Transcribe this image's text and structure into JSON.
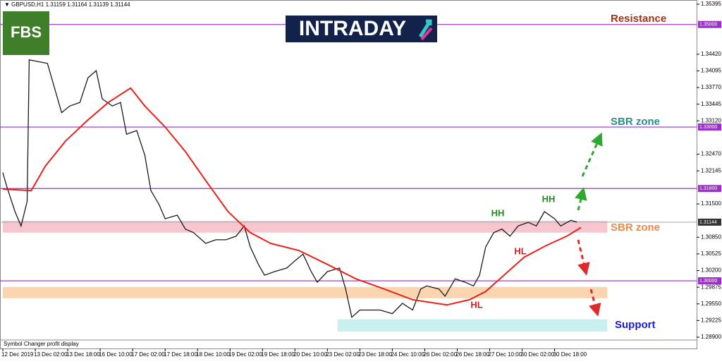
{
  "chart_data": {
    "type": "line",
    "title": "GBPUSD,H1",
    "quote": [
      1.31159,
      1.31164,
      1.31139,
      1.31144
    ],
    "footer": "Symbol Changer profit display",
    "logo": "FBS",
    "banner": "INTRADAY",
    "ylim": [
      1.289,
      1.35395
    ],
    "xlim": [
      0,
      342
    ],
    "yticks": [
      1.35395,
      {
        "value": 1.3442,
        "label": "1.34420"
      },
      1.34095,
      {
        "value": 1.3377,
        "label": "1.33770"
      },
      1.33445,
      {
        "value": 1.3312,
        "label": "1.33120"
      },
      {
        "value": 1.3247,
        "label": "1.32470"
      },
      1.32145,
      {
        "value": 1.315,
        "label": "1.31500"
      },
      {
        "value": 1.3085,
        "label": "1.30850"
      },
      1.30525,
      {
        "value": 1.302,
        "label": "1.30200"
      },
      1.29875,
      {
        "value": 1.2955,
        "label": "1.29550"
      },
      1.29225,
      {
        "value": 1.289,
        "label": "1.28900"
      }
    ],
    "xticks": [
      {
        "value": 0,
        "label": "12 Dec 2019"
      },
      {
        "value": 16,
        "label": "13 Dec 02:00"
      },
      {
        "value": 32,
        "label": "13 Dec 18:00"
      },
      {
        "value": 48,
        "label": "16 Dec 10:00"
      },
      {
        "value": 64,
        "label": "17 Dec 02:00"
      },
      {
        "value": 80,
        "label": "17 Dec 18:00"
      },
      {
        "value": 96,
        "label": "18 Dec 10:00"
      },
      {
        "value": 112,
        "label": "19 Dec 02:00"
      },
      {
        "value": 128,
        "label": "19 Dec 18:00"
      },
      {
        "value": 144,
        "label": "20 Dec 10:00"
      },
      {
        "value": 160,
        "label": "23 Dec 02:00"
      },
      {
        "value": 176,
        "label": "23 Dec 18:00"
      },
      {
        "value": 192,
        "label": "24 Dec 10:00"
      },
      {
        "value": 208,
        "label": "26 Dec 02:00"
      },
      {
        "value": 224,
        "label": "26 Dec 18:00"
      },
      {
        "value": 240,
        "label": "27 Dec 10:00"
      },
      {
        "value": 256,
        "label": "30 Dec 02:00"
      },
      {
        "value": 272,
        "label": "30 Dec 18:00"
      }
    ],
    "levels": [
      {
        "value": 1.35,
        "label": "1.35000",
        "color": "#9b30c8"
      },
      {
        "value": 1.33,
        "label": "1.33000",
        "color": "#9b30c8"
      },
      {
        "value": 1.318,
        "label": "1.31800",
        "color": "#9b30c8"
      },
      {
        "value": 1.31144,
        "label": "1.31144",
        "color": "#b0b0b0"
      },
      {
        "value": 1.3,
        "label": "1.30000",
        "color": "#9b30c8"
      }
    ],
    "zones": [
      {
        "low": 1.3094,
        "high": 1.3117,
        "start": 0,
        "end": 298,
        "color": "#f7c6cf"
      },
      {
        "low": 1.2966,
        "high": 1.2988,
        "start": 0,
        "end": 298,
        "color": "#fbd5b0"
      },
      {
        "low": 1.2901,
        "high": 1.2925,
        "start": 165,
        "end": 298,
        "color": "#c8f0ee"
      }
    ],
    "annotations": [
      {
        "text": "Resistance",
        "color": "#a0341c"
      },
      {
        "text": "SBR zone",
        "color": "#2e8b8b"
      },
      {
        "text": "SBR zone",
        "color": "#f0884a"
      },
      {
        "text": "Support",
        "color": "#1a1ad0"
      },
      {
        "text": "HH",
        "color": "#1f8a1f"
      },
      {
        "text": "HH",
        "color": "#1f8a1f"
      },
      {
        "text": "HL",
        "color": "#d41c1c"
      },
      {
        "text": "HL",
        "color": "#d41c1c"
      }
    ],
    "series": [
      {
        "color": "#1a1a1a",
        "x": [
          0,
          2,
          6,
          9,
          12,
          13,
          22,
          25,
          29,
          33,
          38,
          42,
          46,
          49,
          54,
          58,
          61,
          66,
          70,
          73,
          77,
          80,
          86,
          90,
          94,
          100,
          105,
          110,
          115,
          119,
          122,
          126,
          129,
          134,
          140,
          144,
          148,
          152,
          155,
          160,
          166,
          169,
          172,
          176,
          181,
          186,
          192,
          197,
          202,
          206,
          209,
          215,
          218,
          223,
          228,
          232,
          235,
          238,
          242,
          246,
          250,
          254,
          259,
          263,
          267,
          272,
          275,
          280,
          283
        ],
        "values": [
          1.3211,
          1.3183,
          1.3135,
          1.3107,
          1.3155,
          1.3431,
          1.3424,
          1.3383,
          1.3328,
          1.3341,
          1.3348,
          1.3396,
          1.341,
          1.3355,
          1.3341,
          1.3348,
          1.3286,
          1.3293,
          1.3245,
          1.3176,
          1.3149,
          1.3121,
          1.3128,
          1.3101,
          1.3094,
          1.3073,
          1.308,
          1.308,
          1.3087,
          1.3107,
          1.3066,
          1.3032,
          1.3011,
          1.3018,
          1.3025,
          1.3039,
          1.3052,
          1.3018,
          1.2997,
          1.3018,
          1.3025,
          1.2984,
          1.2929,
          1.2943,
          1.2943,
          1.2943,
          1.2936,
          1.2956,
          1.2943,
          1.2984,
          1.299,
          1.2984,
          1.297,
          1.3004,
          1.2997,
          1.299,
          1.3011,
          1.3066,
          1.3094,
          1.3101,
          1.3087,
          1.3107,
          1.3114,
          1.3107,
          1.3135,
          1.3121,
          1.3107,
          1.3118,
          1.31144
        ]
      },
      {
        "color": "#e8221b",
        "x": [
          0,
          14,
          21,
          31,
          42,
          52,
          63,
          70,
          80,
          90,
          101,
          111,
          122,
          132,
          146,
          160,
          174,
          188,
          202,
          219,
          230,
          238,
          247,
          257,
          268,
          278,
          285
        ],
        "values": [
          1.3179,
          1.3176,
          1.3224,
          1.3273,
          1.3314,
          1.3348,
          1.3376,
          1.3341,
          1.33,
          1.3252,
          1.319,
          1.3135,
          1.3094,
          1.3073,
          1.3059,
          1.3032,
          1.3004,
          1.2984,
          1.2963,
          1.2953,
          1.2963,
          1.2979,
          1.3011,
          1.3046,
          1.3069,
          1.3087,
          1.3104
        ]
      }
    ]
  }
}
